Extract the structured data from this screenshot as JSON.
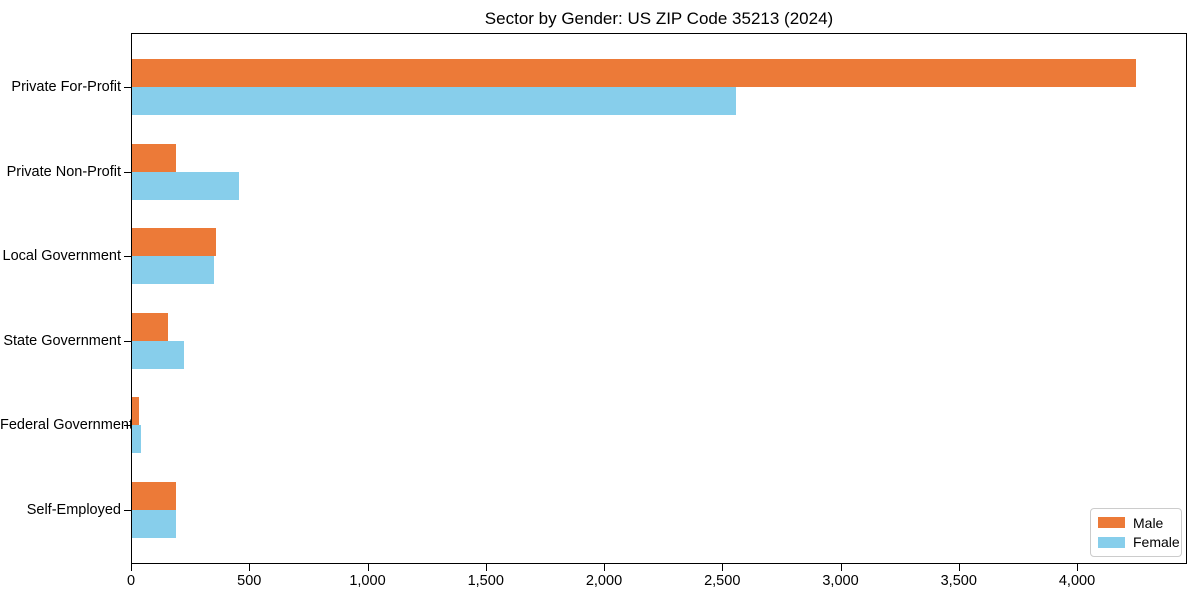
{
  "chart_data": {
    "type": "bar",
    "orientation": "horizontal",
    "title": "Sector by Gender: US ZIP Code 35213 (2024)",
    "categories": [
      "Private For-Profit",
      "Private Non-Profit",
      "Local Government",
      "State Government",
      "Federal Government",
      "Self-Employed"
    ],
    "series": [
      {
        "name": "Male",
        "color": "#EC7A38",
        "values": [
          4250,
          190,
          358,
          155,
          34,
          190
        ]
      },
      {
        "name": "Female",
        "color": "#87CEEB",
        "values": [
          2560,
          455,
          352,
          224,
          42,
          192
        ]
      }
    ],
    "xlabel": "",
    "ylabel": "",
    "xlim": [
      0,
      4465
    ],
    "xticks": [
      0,
      500,
      1000,
      1500,
      2000,
      2500,
      3000,
      3500,
      4000
    ],
    "xtick_format": "comma",
    "grid": false,
    "legend": {
      "position": "lower-right"
    }
  }
}
